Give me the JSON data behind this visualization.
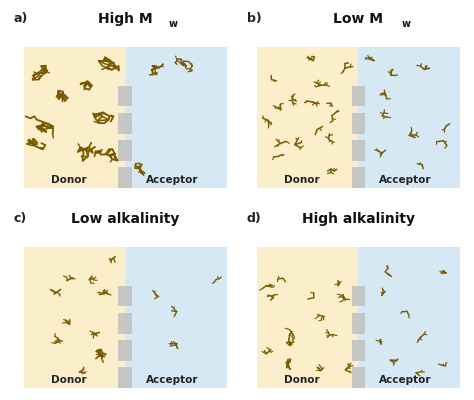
{
  "background_color": "#ffffff",
  "donor_color": "#faeecb",
  "acceptor_color": "#d5e8f4",
  "molecule_color": "#7a5c00",
  "membrane_color": "#c0c0c0",
  "panels": [
    {
      "label": "a)",
      "title": "High M",
      "title_sub": "w",
      "donor_count": 9,
      "acceptor_count": 3,
      "molecule_size": "large"
    },
    {
      "label": "b)",
      "title": "Low M",
      "title_sub": "w",
      "donor_count": 16,
      "acceptor_count": 10,
      "molecule_size": "small"
    },
    {
      "label": "c)",
      "title": "Low alkalinity",
      "title_sub": "",
      "donor_count": 10,
      "acceptor_count": 4,
      "molecule_size": "medium"
    },
    {
      "label": "d)",
      "title": "High alkalinity",
      "title_sub": "",
      "donor_count": 13,
      "acceptor_count": 9,
      "molecule_size": "small_medium"
    }
  ]
}
